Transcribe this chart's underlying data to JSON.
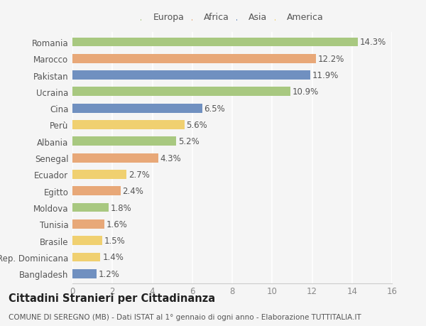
{
  "countries": [
    "Romania",
    "Marocco",
    "Pakistan",
    "Ucraina",
    "Cina",
    "Perù",
    "Albania",
    "Senegal",
    "Ecuador",
    "Egitto",
    "Moldova",
    "Tunisia",
    "Brasile",
    "Rep. Dominicana",
    "Bangladesh"
  ],
  "values": [
    14.3,
    12.2,
    11.9,
    10.9,
    6.5,
    5.6,
    5.2,
    4.3,
    2.7,
    2.4,
    1.8,
    1.6,
    1.5,
    1.4,
    1.2
  ],
  "continents": [
    "Europa",
    "Africa",
    "Asia",
    "Europa",
    "Asia",
    "America",
    "Europa",
    "Africa",
    "America",
    "Africa",
    "Europa",
    "Africa",
    "America",
    "America",
    "Asia"
  ],
  "continent_colors": {
    "Europa": "#a8c880",
    "Africa": "#e8a878",
    "Asia": "#7090c0",
    "America": "#f0d070"
  },
  "legend_order": [
    "Europa",
    "Africa",
    "Asia",
    "America"
  ],
  "xlim": [
    0,
    16
  ],
  "xticks": [
    0,
    2,
    4,
    6,
    8,
    10,
    12,
    14,
    16
  ],
  "title": "Cittadini Stranieri per Cittadinanza",
  "subtitle": "COMUNE DI SEREGNO (MB) - Dati ISTAT al 1° gennaio di ogni anno - Elaborazione TUTTITALIA.IT",
  "bg_color": "#f5f5f5",
  "grid_color": "#ffffff",
  "bar_height": 0.55,
  "value_fontsize": 8.5,
  "ytick_fontsize": 8.5,
  "xtick_fontsize": 8.5,
  "legend_fontsize": 9,
  "title_fontsize": 10.5,
  "subtitle_fontsize": 7.5
}
